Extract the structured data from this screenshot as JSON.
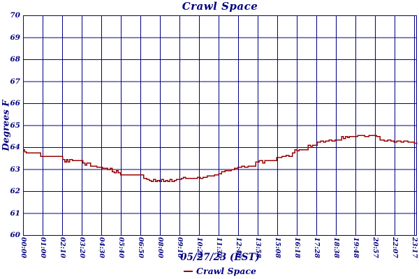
{
  "colors": {
    "grid": "#000080",
    "text": "#000080",
    "line": "#990000",
    "background": "#ffffff"
  },
  "chart_data": {
    "type": "line",
    "title": "Crawl Space",
    "ylabel": "Degrees F",
    "xlabel": "05/27/23 (EST)",
    "legend": [
      {
        "label": "Crawl Space",
        "color": "#990000"
      }
    ],
    "legend_position": "bottom",
    "grid": true,
    "ylim": [
      60,
      70
    ],
    "yticks": [
      70,
      69,
      68,
      67,
      66,
      65,
      64,
      63,
      62,
      61,
      60
    ],
    "xticks": [
      "00:00",
      "01:00",
      "02:10",
      "03:20",
      "04:30",
      "05:40",
      "06:50",
      "08:00",
      "09:10",
      "10:20",
      "11:30",
      "12:40",
      "13:58",
      "15:08",
      "16:18",
      "17:28",
      "18:38",
      "19:48",
      "20:57",
      "22:07",
      "23:17"
    ],
    "x_range_minutes": [
      0,
      1400
    ],
    "series": [
      {
        "name": "Crawl Space",
        "color": "#990000",
        "step": true,
        "unit": "degrees F",
        "points": [
          [
            0,
            63.9
          ],
          [
            4,
            63.8
          ],
          [
            10,
            63.75
          ],
          [
            62,
            63.6
          ],
          [
            140,
            63.45
          ],
          [
            147,
            63.35
          ],
          [
            153,
            63.45
          ],
          [
            159,
            63.35
          ],
          [
            165,
            63.45
          ],
          [
            174,
            63.4
          ],
          [
            212,
            63.3
          ],
          [
            219,
            63.2
          ],
          [
            226,
            63.3
          ],
          [
            239,
            63.15
          ],
          [
            262,
            63.1
          ],
          [
            281,
            63.05
          ],
          [
            300,
            63.0
          ],
          [
            309,
            63.05
          ],
          [
            316,
            62.9
          ],
          [
            324,
            62.85
          ],
          [
            331,
            62.95
          ],
          [
            338,
            62.85
          ],
          [
            346,
            62.75
          ],
          [
            428,
            62.6
          ],
          [
            440,
            62.55
          ],
          [
            448,
            62.5
          ],
          [
            456,
            62.45
          ],
          [
            463,
            62.55
          ],
          [
            470,
            62.45
          ],
          [
            477,
            62.5
          ],
          [
            484,
            62.45
          ],
          [
            492,
            62.55
          ],
          [
            499,
            62.45
          ],
          [
            507,
            62.5
          ],
          [
            514,
            62.45
          ],
          [
            522,
            62.55
          ],
          [
            529,
            62.45
          ],
          [
            537,
            62.5
          ],
          [
            545,
            62.55
          ],
          [
            562,
            62.6
          ],
          [
            570,
            62.65
          ],
          [
            578,
            62.6
          ],
          [
            620,
            62.65
          ],
          [
            630,
            62.6
          ],
          [
            640,
            62.65
          ],
          [
            655,
            62.7
          ],
          [
            680,
            62.75
          ],
          [
            695,
            62.8
          ],
          [
            705,
            62.9
          ],
          [
            718,
            62.95
          ],
          [
            740,
            63.0
          ],
          [
            752,
            63.05
          ],
          [
            764,
            63.1
          ],
          [
            777,
            63.15
          ],
          [
            788,
            63.1
          ],
          [
            800,
            63.15
          ],
          [
            827,
            63.35
          ],
          [
            840,
            63.4
          ],
          [
            852,
            63.3
          ],
          [
            860,
            63.4
          ],
          [
            902,
            63.55
          ],
          [
            920,
            63.6
          ],
          [
            936,
            63.65
          ],
          [
            946,
            63.6
          ],
          [
            958,
            63.75
          ],
          [
            966,
            63.9
          ],
          [
            974,
            63.85
          ],
          [
            982,
            63.9
          ],
          [
            1014,
            64.1
          ],
          [
            1022,
            64.05
          ],
          [
            1030,
            64.1
          ],
          [
            1046,
            64.25
          ],
          [
            1058,
            64.3
          ],
          [
            1068,
            64.25
          ],
          [
            1076,
            64.3
          ],
          [
            1088,
            64.35
          ],
          [
            1098,
            64.3
          ],
          [
            1110,
            64.35
          ],
          [
            1133,
            64.5
          ],
          [
            1140,
            64.4
          ],
          [
            1147,
            64.5
          ],
          [
            1154,
            64.45
          ],
          [
            1161,
            64.5
          ],
          [
            1190,
            64.55
          ],
          [
            1215,
            64.5
          ],
          [
            1230,
            64.55
          ],
          [
            1257,
            64.5
          ],
          [
            1270,
            64.35
          ],
          [
            1285,
            64.3
          ],
          [
            1297,
            64.35
          ],
          [
            1308,
            64.3
          ],
          [
            1320,
            64.25
          ],
          [
            1330,
            64.3
          ],
          [
            1345,
            64.25
          ],
          [
            1355,
            64.3
          ],
          [
            1370,
            64.25
          ],
          [
            1385,
            64.25
          ],
          [
            1392,
            64.2
          ],
          [
            1400,
            64.15
          ]
        ]
      }
    ]
  }
}
